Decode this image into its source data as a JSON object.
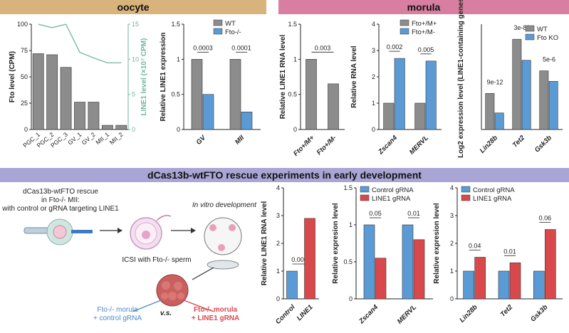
{
  "banners": {
    "oocyte": "oocyte",
    "morula": "morula",
    "rescue": "dCas13b-wtFTO rescue experiments in early development"
  },
  "colors": {
    "grey": "#8c8c8c",
    "blue": "#5b9bd5",
    "red": "#d9494c",
    "green": "#6fb79b",
    "tan": "#d9b37c",
    "pink": "#d87ea0",
    "lavender": "#a9a6d6"
  },
  "schematic": {
    "title_lines": [
      "dCas13b-wtFTO rescue",
      "in Fto-/- MII:",
      "with control or gRNA targeting LINE1"
    ],
    "invitro": "In vitro development",
    "icsi": "ICSI with Fto-/- sperm",
    "left_result": [
      "Fto-/- morula",
      "+ control gRNA"
    ],
    "vs": "v.s.",
    "right_result": [
      "Fto-/- morula",
      "+ LINE1 gRNA"
    ]
  },
  "chart_data": [
    {
      "id": "oocyte_pgc",
      "type": "bar",
      "categories": [
        "PGC_1",
        "PGC_2",
        "PGC_3",
        "GV_1",
        "GV_2",
        "MII_1",
        "MII_2"
      ],
      "series": [
        {
          "name": "Fto level (CPM)",
          "kind": "bar",
          "axis": "left",
          "values": [
            72,
            71,
            59,
            26,
            26,
            4,
            4
          ]
        },
        {
          "name": "LINE1 level (×10⁷ CPM)",
          "kind": "line",
          "axis": "right",
          "values": [
            15,
            14.5,
            15,
            11,
            10.2,
            9.5,
            9.5
          ]
        }
      ],
      "ylabel": "Fto level (CPM)",
      "y2label": "LINE1 level (×10⁷ CPM)",
      "ylim": [
        0,
        100
      ],
      "yticks": [
        0,
        25,
        50,
        75,
        100
      ],
      "y2lim": [
        0,
        15
      ],
      "y2ticks": [
        0,
        5,
        10,
        15
      ]
    },
    {
      "id": "oocyte_line1",
      "type": "bar",
      "categories": [
        "GV",
        "MII"
      ],
      "series": [
        {
          "name": "WT",
          "values": [
            1.0,
            1.0
          ]
        },
        {
          "name": "Fto-/-",
          "values": [
            0.5,
            0.25
          ]
        }
      ],
      "ylabel": "Relative LINE1 expression",
      "ylim": [
        0,
        1.5
      ],
      "yticks": [
        0,
        0.5,
        1,
        1.5
      ],
      "annotations": [
        "0.0003",
        "0.0001"
      ],
      "legend": "top-right"
    },
    {
      "id": "morula_line1",
      "type": "bar",
      "categories": [
        "Fto+/M+",
        "Fto+/M-"
      ],
      "values": [
        1.0,
        0.65
      ],
      "ylabel": "Relative LINE1 RNA level",
      "ylim": [
        0,
        1.5
      ],
      "yticks": [
        0,
        0.5,
        1,
        1.5
      ],
      "annotations": [
        "0.003"
      ]
    },
    {
      "id": "morula_genes",
      "type": "bar",
      "categories": [
        "Zscan4",
        "MERVL"
      ],
      "series": [
        {
          "name": "Fto+/M+",
          "values": [
            1.0,
            1.0
          ]
        },
        {
          "name": "Fto+/M-",
          "values": [
            2.7,
            2.6
          ]
        }
      ],
      "ylabel": "Relative RNA level",
      "ylim": [
        0,
        4
      ],
      "yticks": [
        0,
        1,
        2,
        3,
        4
      ],
      "annotations": [
        "0.002",
        "0.005"
      ],
      "legend": "top"
    },
    {
      "id": "morula_log2",
      "type": "bar",
      "categories": [
        "Lin28b",
        "Tet2",
        "Gsk3b"
      ],
      "series": [
        {
          "name": "WT",
          "values": [
            2.4,
            6.0,
            3.9
          ]
        },
        {
          "name": "Fto KO",
          "values": [
            1.1,
            4.6,
            3.2
          ]
        }
      ],
      "ylabel": "Log2 expression level (LINE1-containing genes)",
      "ylim": [
        0,
        7
      ],
      "annotations": [
        "9e-12",
        "3e-80",
        "5e-6"
      ],
      "legend": "top-right"
    },
    {
      "id": "rescue_line1",
      "type": "bar",
      "categories": [
        "Control",
        "LINE1"
      ],
      "values": [
        1.0,
        2.9
      ],
      "ylabel": "Relative LINE1 RNA level",
      "ylim": [
        0,
        4
      ],
      "yticks": [
        0,
        1,
        2,
        3,
        4
      ],
      "annotations": [
        "0.0007"
      ]
    },
    {
      "id": "rescue_genes",
      "type": "bar",
      "categories": [
        "Zscan4",
        "MERVL"
      ],
      "series": [
        {
          "name": "Control gRNA",
          "values": [
            1.0,
            1.0
          ]
        },
        {
          "name": "LINE1 gRNA",
          "values": [
            0.55,
            0.8
          ]
        }
      ],
      "ylabel": "Relative expresion level",
      "ylim": [
        0,
        1.5
      ],
      "yticks": [
        0,
        0.5,
        1,
        1.5
      ],
      "annotations": [
        "0.05",
        "0.01"
      ],
      "legend": "top"
    },
    {
      "id": "rescue_line1genes",
      "type": "bar",
      "categories": [
        "Lin28b",
        "Tet2",
        "Gsk3b"
      ],
      "series": [
        {
          "name": "Control gRNA",
          "values": [
            1.0,
            1.0,
            1.0
          ]
        },
        {
          "name": "LINE1 gRNA",
          "values": [
            1.5,
            1.3,
            2.5
          ]
        }
      ],
      "ylabel": "Relative expresion level",
      "ylim": [
        0,
        4
      ],
      "yticks": [
        0,
        1,
        2,
        3,
        4
      ],
      "annotations": [
        "0.04",
        "0.01",
        "0.06"
      ],
      "legend": "top-left"
    }
  ]
}
